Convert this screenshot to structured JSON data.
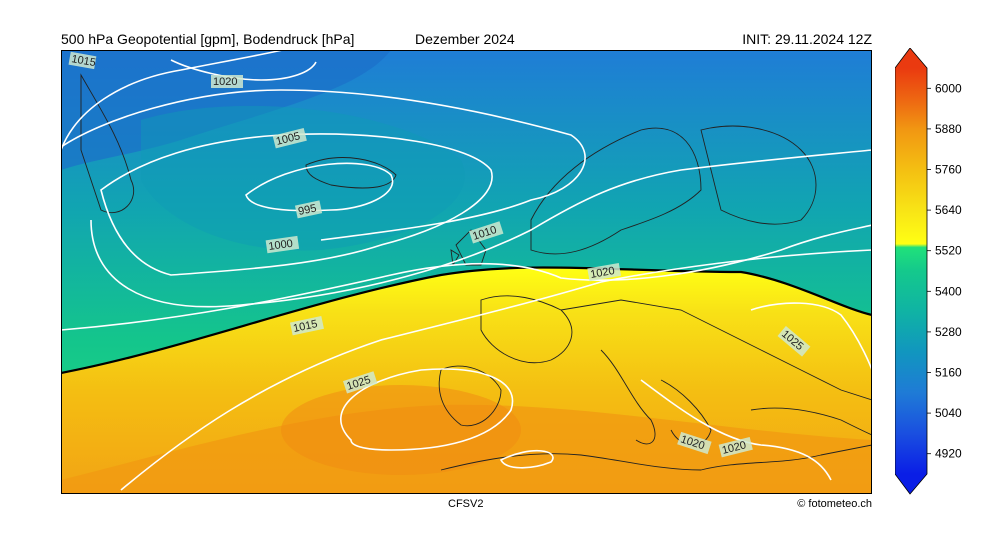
{
  "header": {
    "left_title": "500 hPa Geopotential [gpm], Bodendruck [hPa]",
    "center_title": "Dezember 2024",
    "right_title": "INIT: 29.11.2024 12Z"
  },
  "footer": {
    "model": "CFSV2",
    "credit": "© fotometeo.ch"
  },
  "colorbar": {
    "unit": "gpm",
    "range": [
      4860,
      6060
    ],
    "ticks": [
      "6000",
      "5880",
      "5760",
      "5640",
      "5520",
      "5400",
      "5280",
      "5160",
      "5040",
      "4920"
    ],
    "stops": [
      {
        "value": 4860,
        "color": "#0a1ee6"
      },
      {
        "value": 4980,
        "color": "#1a4fe0"
      },
      {
        "value": 5100,
        "color": "#1f7bd6"
      },
      {
        "value": 5220,
        "color": "#1196bf"
      },
      {
        "value": 5340,
        "color": "#10b3a4"
      },
      {
        "value": 5460,
        "color": "#14c98c"
      },
      {
        "value": 5530,
        "color": "#20e17a"
      },
      {
        "value": 5540,
        "color": "#ffff14"
      },
      {
        "value": 5640,
        "color": "#f8e416"
      },
      {
        "value": 5760,
        "color": "#f4bf12"
      },
      {
        "value": 5880,
        "color": "#f19612"
      },
      {
        "value": 5960,
        "color": "#ee6a12"
      },
      {
        "value": 6060,
        "color": "#ea3a10"
      }
    ]
  },
  "map": {
    "isobar_labels": [
      "1015",
      "1020",
      "1005",
      "995",
      "1000",
      "1010",
      "1020",
      "1015",
      "1025",
      "1025",
      "1020",
      "1020"
    ],
    "colors": {
      "isobar": "#ffffff",
      "contour_5520": "#000000",
      "coastline": "#222222",
      "label_box": "#cfe9cf"
    }
  }
}
